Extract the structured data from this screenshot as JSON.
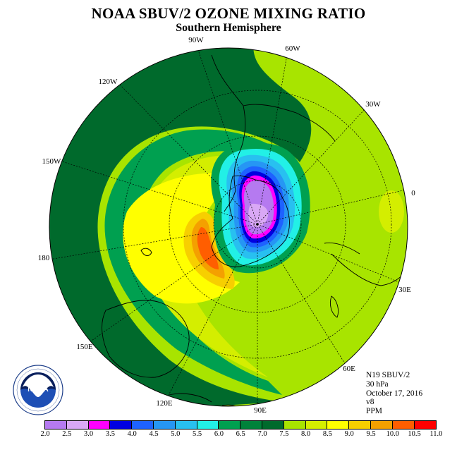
{
  "title": "NOAA SBUV/2 OZONE MIXING RATIO",
  "subtitle": "Southern Hemisphere",
  "longitude_labels": [
    "90W",
    "60W",
    "30W",
    "0",
    "30E",
    "60E",
    "90E",
    "120E",
    "150E",
    "180",
    "150W",
    "120W"
  ],
  "info": {
    "satellite": "N19 SBUV/2",
    "pressure": "30 hPa",
    "date": "October 17, 2016",
    "version": "v8",
    "units": "PPM"
  },
  "logo": {
    "text": "NOAA",
    "ring_text": "NATIONAL OCEANIC AND ATMOSPHERIC ADMINISTRATION · U.S. DEPARTMENT OF COMMERCE"
  },
  "colorbar": {
    "ticks": [
      "2.0",
      "2.5",
      "3.0",
      "3.5",
      "4.0",
      "4.5",
      "5.0",
      "5.5",
      "6.0",
      "6.5",
      "7.0",
      "7.5",
      "8.0",
      "8.5",
      "9.0",
      "9.5",
      "10.0",
      "10.5",
      "11.0"
    ],
    "colors": [
      "#b57af0",
      "#d9a8f5",
      "#ff00ff",
      "#0000e0",
      "#1e62ff",
      "#2696f4",
      "#28c0f0",
      "#22f0e6",
      "#00a050",
      "#00823a",
      "#006a2c",
      "#a8e400",
      "#d4ee00",
      "#ffff00",
      "#f7cf00",
      "#f4a000",
      "#ff5e00",
      "#ff0000",
      "#8c5a3c"
    ]
  }
}
